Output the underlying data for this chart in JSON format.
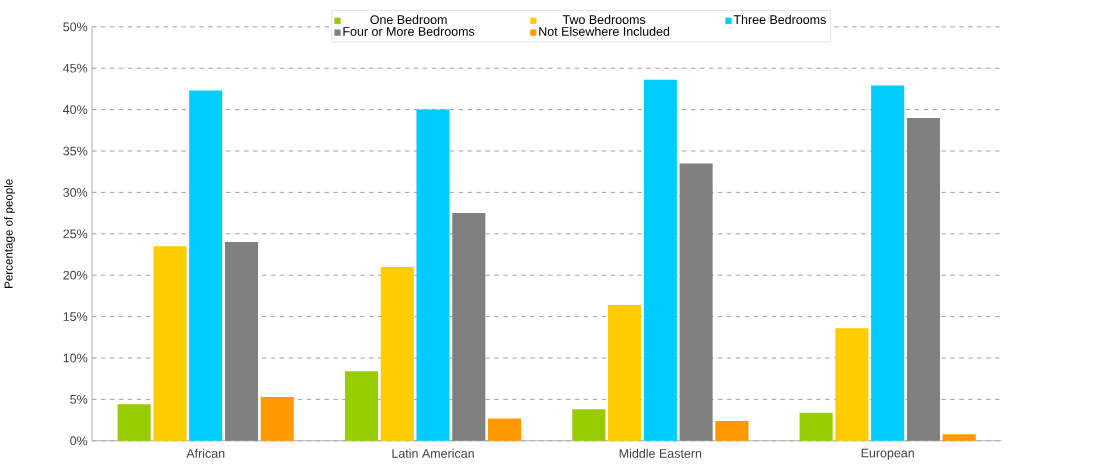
{
  "chart_data": {
    "type": "bar",
    "ylabel": "Percentage of people",
    "categories": [
      "African",
      "Latin American",
      "Middle Eastern",
      "European"
    ],
    "series": [
      {
        "name": "One Bedroom",
        "color": "#99cc00",
        "values": [
          4.4,
          8.4,
          3.8,
          3.4
        ]
      },
      {
        "name": "Two Bedrooms",
        "color": "#ffcc00",
        "values": [
          23.5,
          21.0,
          16.4,
          13.6
        ]
      },
      {
        "name": "Three Bedrooms",
        "color": "#00ccff",
        "values": [
          42.3,
          40.0,
          43.6,
          42.9
        ]
      },
      {
        "name": "Four or More Bedrooms",
        "color": "#808080",
        "values": [
          24.0,
          27.5,
          33.5,
          39.0
        ]
      },
      {
        "name": "Not Elsewhere Included",
        "color": "#ff9900",
        "values": [
          5.3,
          2.7,
          2.4,
          0.8
        ]
      }
    ],
    "ylim": [
      0,
      50
    ],
    "yticks": [
      {
        "value": 0,
        "label": "0%"
      },
      {
        "value": 5,
        "label": "5%"
      },
      {
        "value": 10,
        "label": "10%"
      },
      {
        "value": 15,
        "label": "15%"
      },
      {
        "value": 20,
        "label": "20%"
      },
      {
        "value": 25,
        "label": "25%"
      },
      {
        "value": 30,
        "label": "30%"
      },
      {
        "value": 35,
        "label": "35%"
      },
      {
        "value": 40,
        "label": "40%"
      },
      {
        "value": 45,
        "label": "45%"
      },
      {
        "value": 50,
        "label": "50%"
      }
    ],
    "grid": "y",
    "legend": "top"
  }
}
